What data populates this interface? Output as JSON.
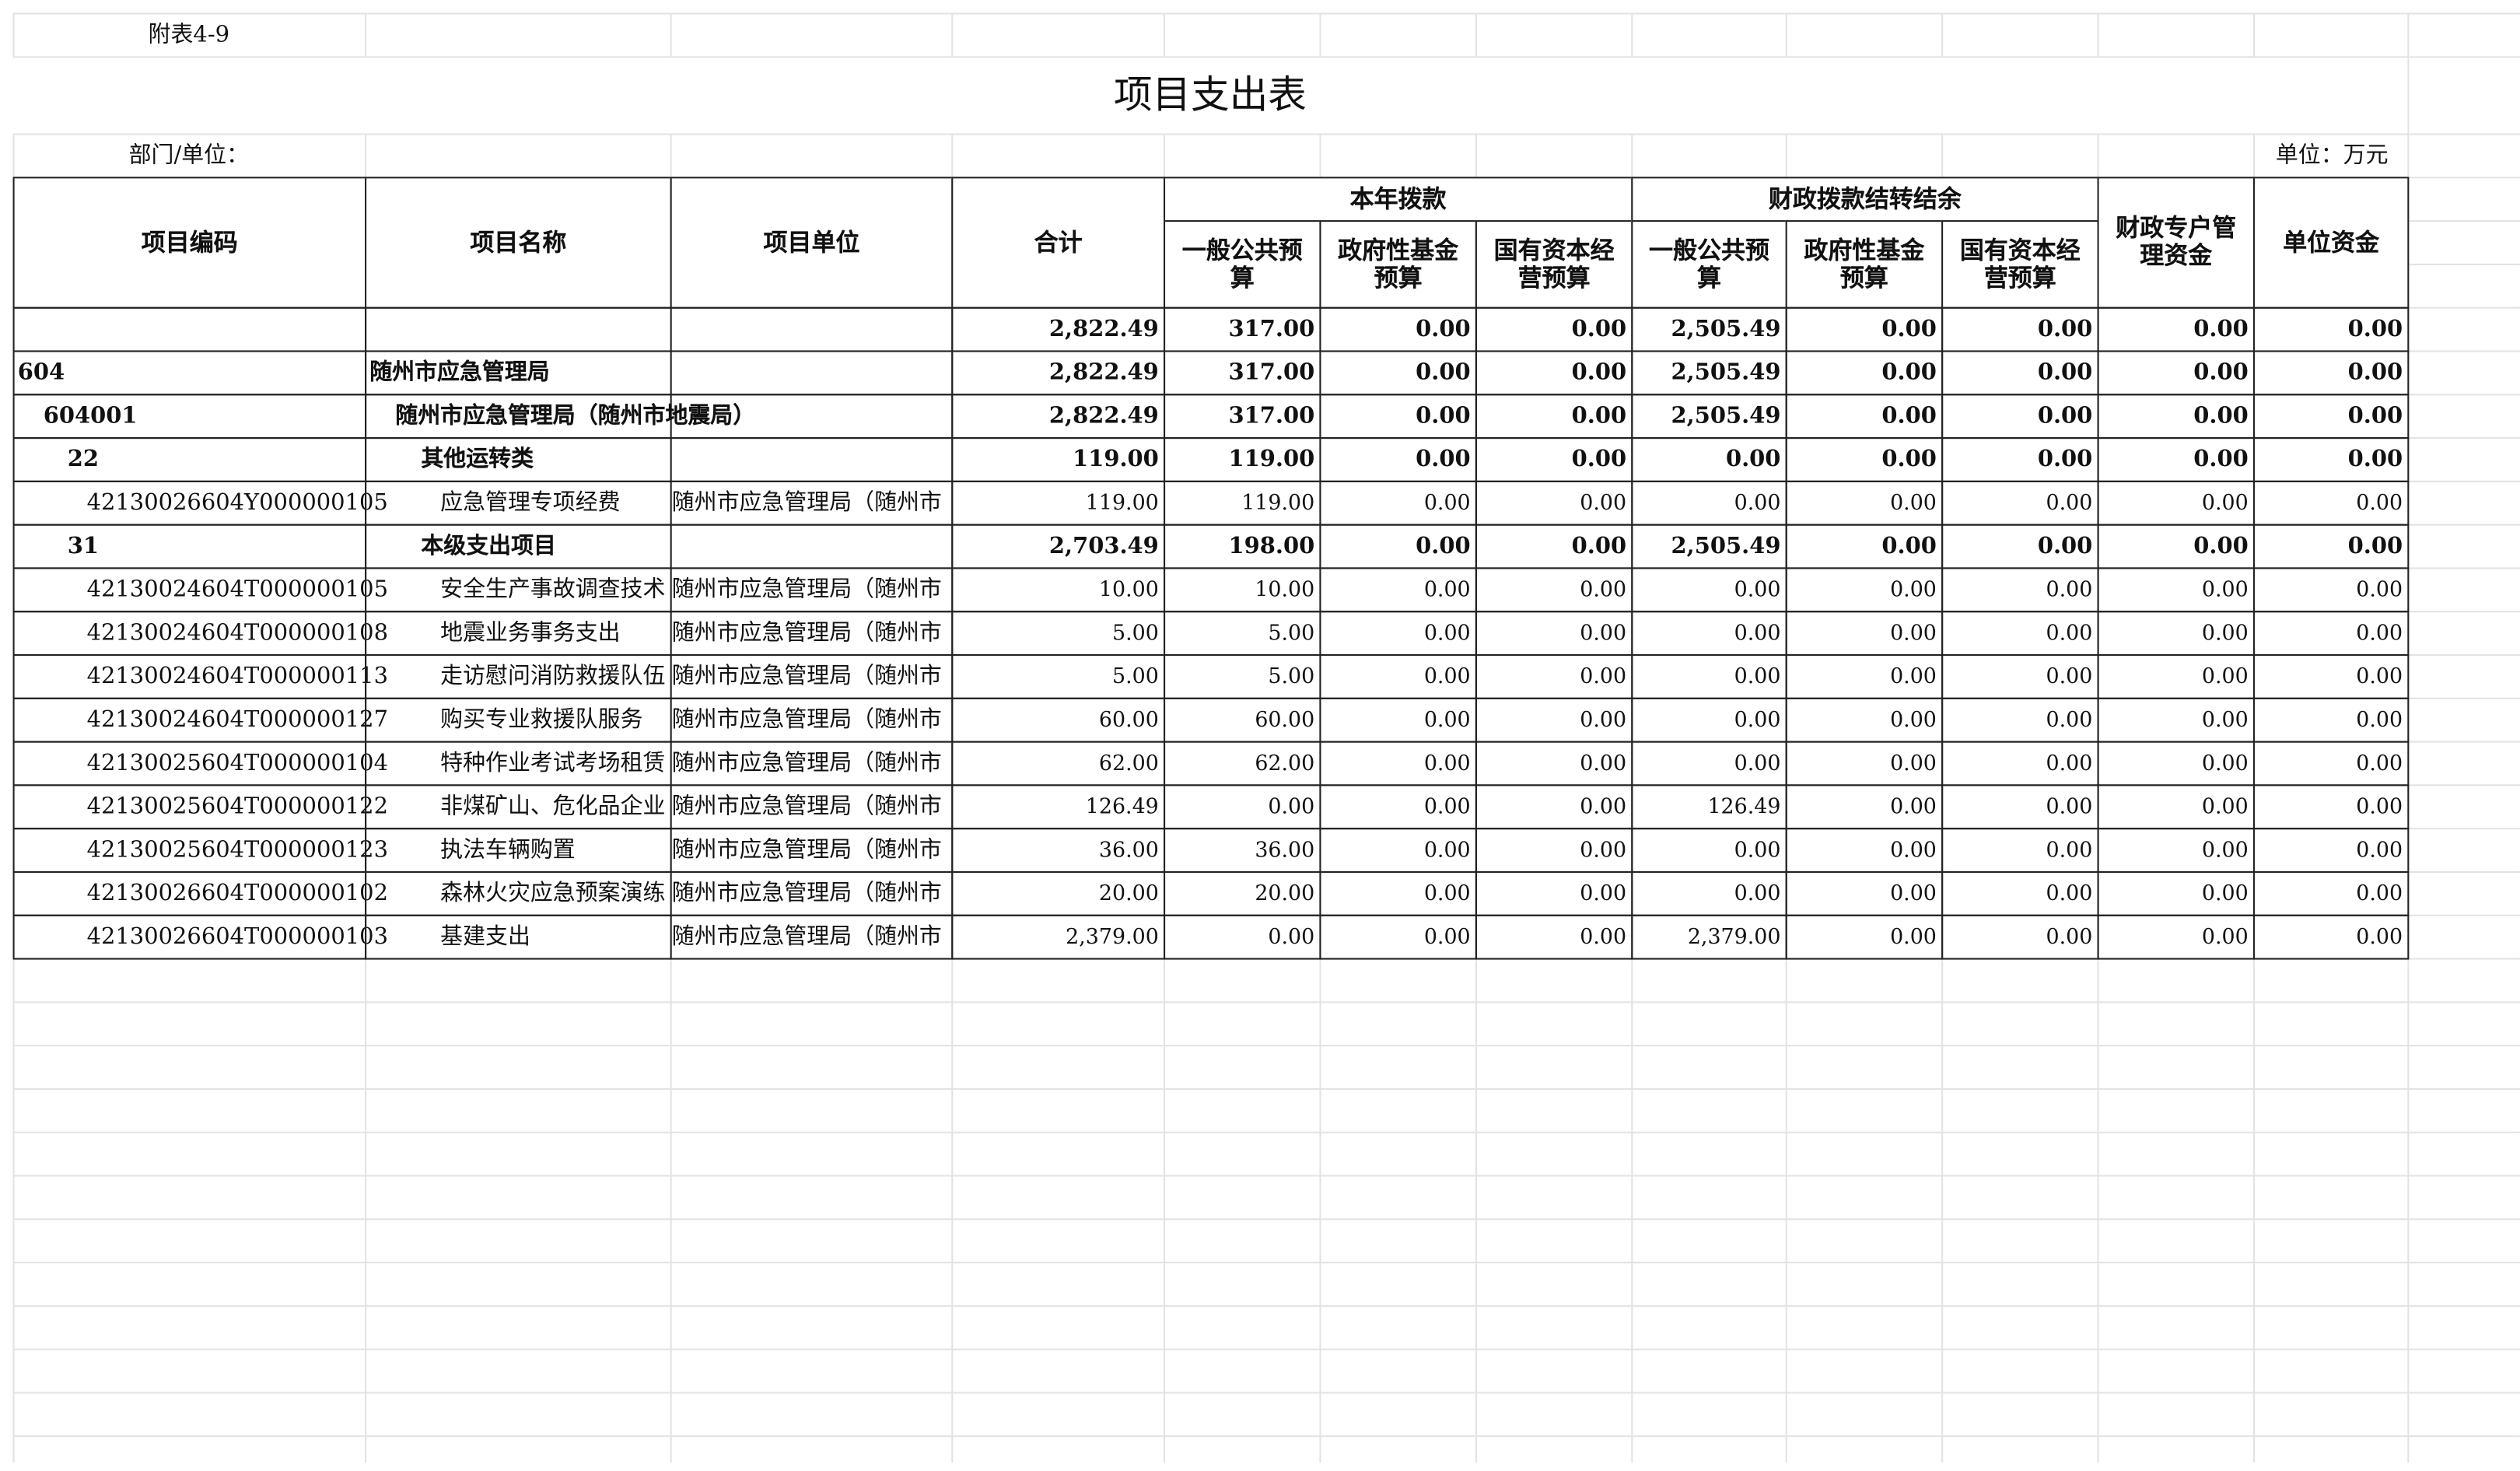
{
  "header": {
    "note": "附表4-9",
    "title": "项目支出表",
    "department": "部门/单位：",
    "unit": "单位：万元"
  },
  "table": {
    "columns": [
      "项目编码",
      "项目名称",
      "项目单位",
      "合计"
    ],
    "groups": [
      {
        "label": "本年拨款",
        "columns": [
          "一般公共预算",
          "政府性基金预算",
          "国有资本经营预算"
        ]
      },
      {
        "label": "财政拨款结转结余",
        "columns": [
          "一般公共预算",
          "政府性基金预算",
          "国有资本经营预算"
        ]
      }
    ],
    "tail_columns": [
      "财政专户管理资金",
      "单位资金"
    ],
    "rows": [
      [
        null,
        null,
        null,
        "2,822.49",
        "317.00",
        "0.00",
        "0.00",
        "2,505.49",
        "0.00",
        "0.00",
        "0.00",
        "0.00"
      ],
      [
        "604",
        "随州市应急管理局",
        null,
        "2,822.49",
        "317.00",
        "0.00",
        "0.00",
        "2,505.49",
        "0.00",
        "0.00",
        "0.00",
        "0.00"
      ],
      [
        "604001",
        "随州市应急管理局（随州市地震局）",
        null,
        "2,822.49",
        "317.00",
        "0.00",
        "0.00",
        "2,505.49",
        "0.00",
        "0.00",
        "0.00",
        "0.00"
      ],
      [
        "22",
        "其他运转类",
        null,
        "119.00",
        "119.00",
        "0.00",
        "0.00",
        "0.00",
        "0.00",
        "0.00",
        "0.00",
        "0.00"
      ],
      [
        "42130026604Y000000105",
        "应急管理专项经费",
        "随州市应急管理局（随州市",
        "119.00",
        "119.00",
        "0.00",
        "0.00",
        "0.00",
        "0.00",
        "0.00",
        "0.00",
        "0.00"
      ],
      [
        "31",
        "本级支出项目",
        null,
        "2,703.49",
        "198.00",
        "0.00",
        "0.00",
        "2,505.49",
        "0.00",
        "0.00",
        "0.00",
        "0.00"
      ],
      [
        "42130024604T000000105",
        "安全生产事故调查技术",
        "随州市应急管理局（随州市",
        "10.00",
        "10.00",
        "0.00",
        "0.00",
        "0.00",
        "0.00",
        "0.00",
        "0.00",
        "0.00"
      ],
      [
        "42130024604T000000108",
        "地震业务事务支出",
        "随州市应急管理局（随州市",
        "5.00",
        "5.00",
        "0.00",
        "0.00",
        "0.00",
        "0.00",
        "0.00",
        "0.00",
        "0.00"
      ],
      [
        "42130024604T000000113",
        "走访慰问消防救援队伍",
        "随州市应急管理局（随州市",
        "5.00",
        "5.00",
        "0.00",
        "0.00",
        "0.00",
        "0.00",
        "0.00",
        "0.00",
        "0.00"
      ],
      [
        "42130024604T000000127",
        "购买专业救援队服务",
        "随州市应急管理局（随州市",
        "60.00",
        "60.00",
        "0.00",
        "0.00",
        "0.00",
        "0.00",
        "0.00",
        "0.00",
        "0.00"
      ],
      [
        "42130025604T000000104",
        "特种作业考试考场租赁",
        "随州市应急管理局（随州市",
        "62.00",
        "62.00",
        "0.00",
        "0.00",
        "0.00",
        "0.00",
        "0.00",
        "0.00",
        "0.00"
      ],
      [
        "42130025604T000000122",
        "非煤矿山、危化品企业",
        "随州市应急管理局（随州市",
        "126.49",
        "0.00",
        "0.00",
        "0.00",
        "126.49",
        "0.00",
        "0.00",
        "0.00",
        "0.00"
      ],
      [
        "42130025604T000000123",
        "执法车辆购置",
        "随州市应急管理局（随州市",
        "36.00",
        "36.00",
        "0.00",
        "0.00",
        "0.00",
        "0.00",
        "0.00",
        "0.00",
        "0.00"
      ],
      [
        "42130026604T000000102",
        "森林火灾应急预案演练",
        "随州市应急管理局（随州市",
        "20.00",
        "20.00",
        "0.00",
        "0.00",
        "0.00",
        "0.00",
        "0.00",
        "0.00",
        "0.00"
      ],
      [
        "42130026604T000000103",
        "基建支出",
        "随州市应急管理局（随州市",
        "2,379.00",
        "0.00",
        "0.00",
        "0.00",
        "2,379.00",
        "0.00",
        "0.00",
        "0.00",
        "0.00"
      ]
    ]
  }
}
